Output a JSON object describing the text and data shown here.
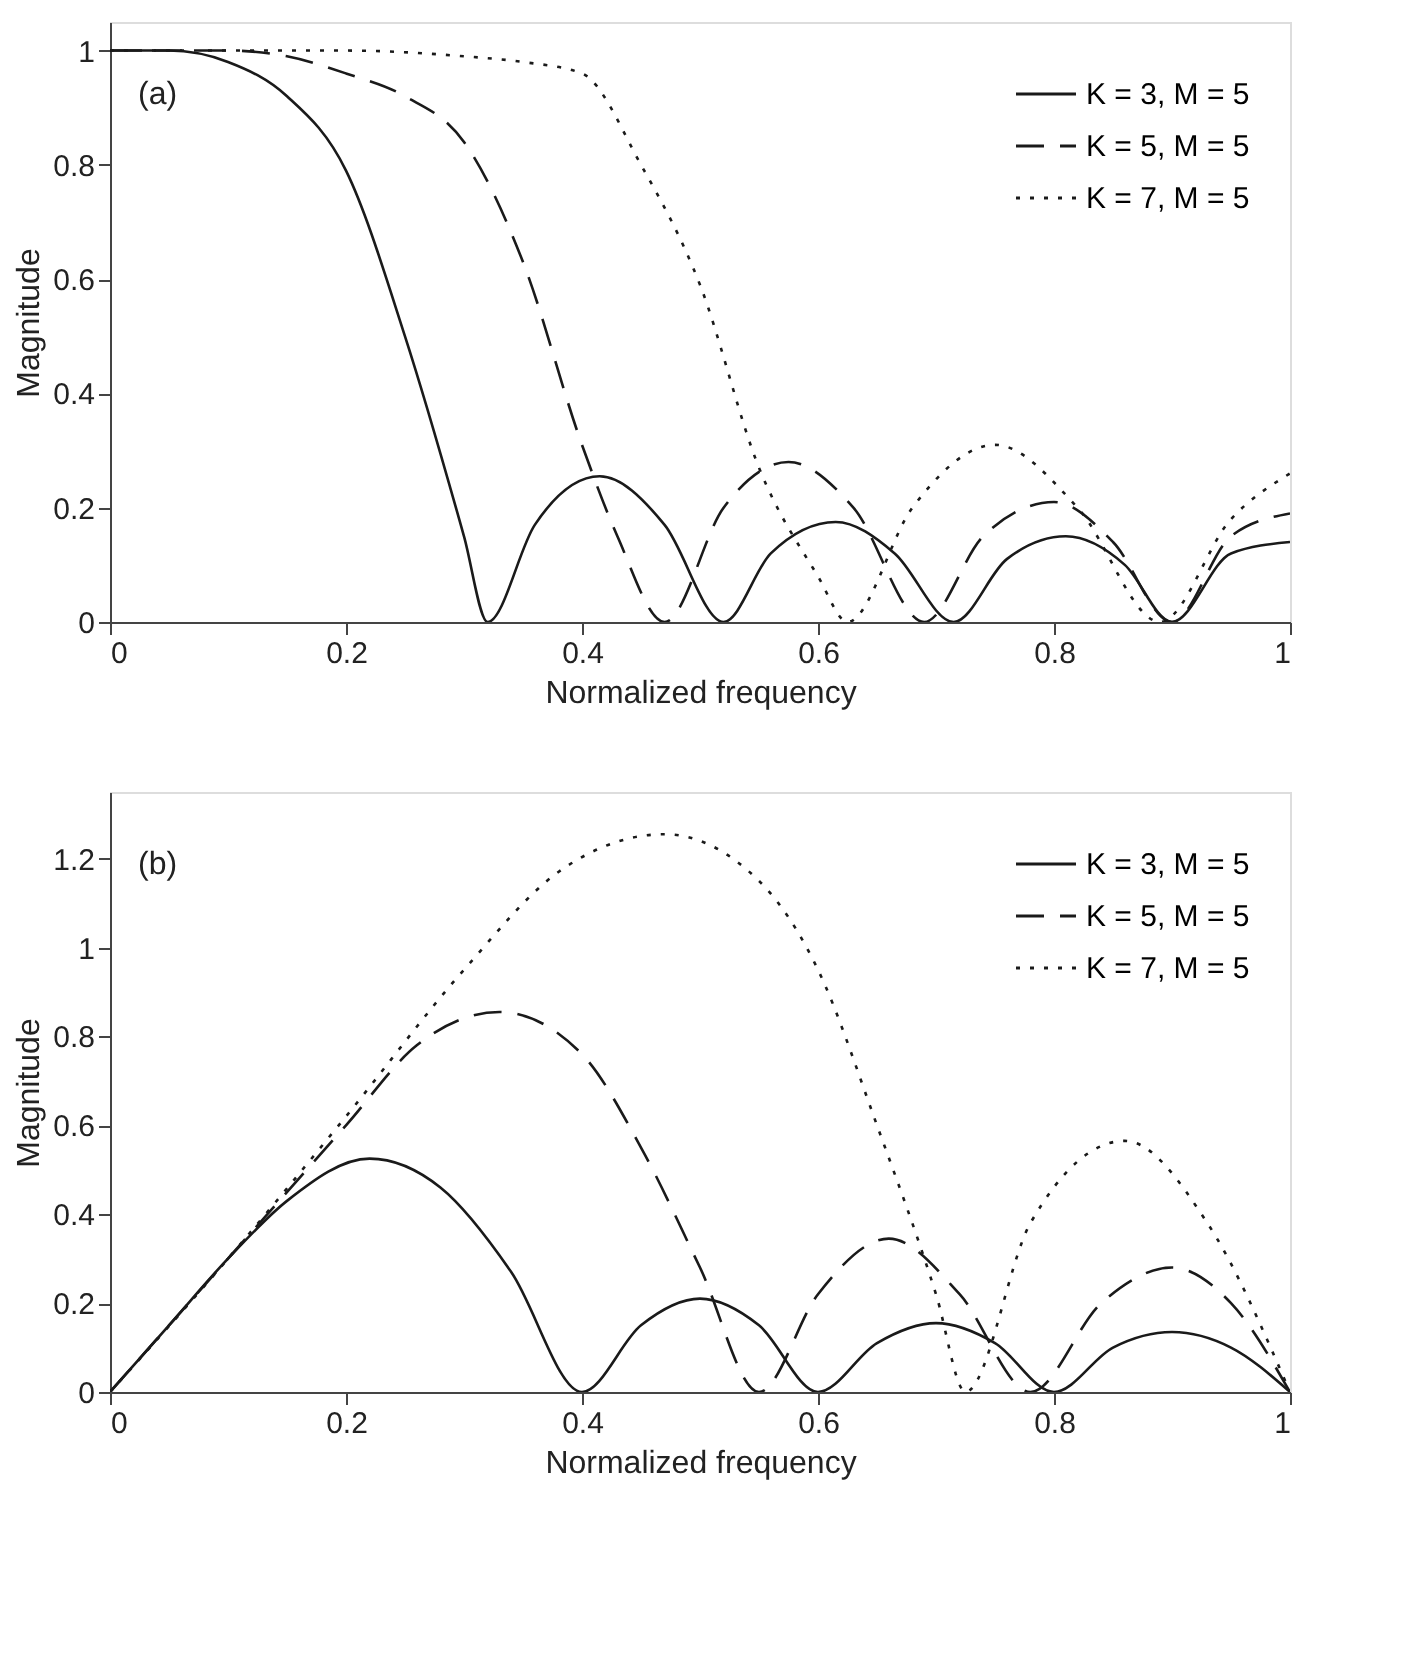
{
  "chart_data": [
    {
      "type": "line",
      "xlabel": "Normalized frequency",
      "ylabel": "Magnitude",
      "annotations": [
        "(a)"
      ],
      "legend": "top right",
      "grid": false,
      "xlim": [
        0,
        1
      ],
      "ylim": [
        0,
        1.05
      ],
      "xticks": [
        0,
        0.2,
        0.4,
        0.6,
        0.8,
        1
      ],
      "yticks": [
        0,
        0.2,
        0.4,
        0.6,
        0.8,
        1
      ],
      "series": [
        {
          "name": "K = 3, M = 5",
          "color": "#1a1a1a",
          "line_style": "solid",
          "x": [
            0,
            0.05,
            0.1,
            0.15,
            0.2,
            0.25,
            0.3,
            0.32,
            0.36,
            0.415,
            0.47,
            0.52,
            0.56,
            0.615,
            0.665,
            0.715,
            0.76,
            0.81,
            0.86,
            0.9,
            0.95,
            1
          ],
          "values": [
            1,
            1,
            0.98,
            0.92,
            0.79,
            0.5,
            0.15,
            0,
            0.17,
            0.255,
            0.17,
            0,
            0.12,
            0.175,
            0.12,
            0,
            0.11,
            0.15,
            0.1,
            0,
            0.12,
            0.14
          ]
        },
        {
          "name": "K = 5, M = 5",
          "color": "#1a1a1a",
          "line_style": "dashed",
          "x": [
            0,
            0.1,
            0.15,
            0.2,
            0.25,
            0.3,
            0.35,
            0.4,
            0.43,
            0.47,
            0.52,
            0.575,
            0.63,
            0.69,
            0.74,
            0.8,
            0.85,
            0.9,
            0.95,
            1
          ],
          "values": [
            1,
            1,
            0.99,
            0.96,
            0.92,
            0.84,
            0.63,
            0.31,
            0.15,
            0,
            0.2,
            0.28,
            0.2,
            0,
            0.15,
            0.21,
            0.14,
            0,
            0.15,
            0.19
          ]
        },
        {
          "name": "K = 7, M = 5",
          "color": "#1a1a1a",
          "line_style": "dotted",
          "x": [
            0,
            0.2,
            0.3,
            0.35,
            0.4,
            0.45,
            0.5,
            0.55,
            0.6,
            0.625,
            0.68,
            0.75,
            0.82,
            0.89,
            0.95,
            1
          ],
          "values": [
            1,
            1,
            0.99,
            0.98,
            0.96,
            0.8,
            0.59,
            0.27,
            0.08,
            0,
            0.2,
            0.31,
            0.2,
            0,
            0.18,
            0.26
          ]
        }
      ]
    },
    {
      "type": "line",
      "xlabel": "Normalized frequency",
      "ylabel": "Magnitude",
      "annotations": [
        "(b)"
      ],
      "legend": "top right",
      "grid": false,
      "xlim": [
        0,
        1
      ],
      "ylim": [
        0,
        1.35
      ],
      "xticks": [
        0,
        0.2,
        0.4,
        0.6,
        0.8,
        1
      ],
      "yticks": [
        0,
        0.2,
        0.4,
        0.6,
        0.8,
        1,
        1.2
      ],
      "series": [
        {
          "name": "K = 3, M = 5",
          "color": "#1a1a1a",
          "line_style": "solid",
          "x": [
            0,
            0.05,
            0.1,
            0.15,
            0.22,
            0.28,
            0.34,
            0.4,
            0.45,
            0.5,
            0.55,
            0.6,
            0.65,
            0.7,
            0.75,
            0.8,
            0.85,
            0.9,
            0.95,
            1
          ],
          "values": [
            0,
            0.15,
            0.3,
            0.43,
            0.525,
            0.46,
            0.27,
            0,
            0.15,
            0.21,
            0.15,
            0,
            0.11,
            0.155,
            0.11,
            0,
            0.1,
            0.135,
            0.1,
            0
          ]
        },
        {
          "name": "K = 5, M = 5",
          "color": "#1a1a1a",
          "line_style": "dashed",
          "x": [
            0,
            0.1,
            0.2,
            0.26,
            0.33,
            0.4,
            0.45,
            0.5,
            0.55,
            0.6,
            0.66,
            0.72,
            0.78,
            0.84,
            0.9,
            0.95,
            1
          ],
          "values": [
            0,
            0.3,
            0.6,
            0.78,
            0.855,
            0.76,
            0.55,
            0.28,
            0,
            0.22,
            0.345,
            0.22,
            0,
            0.2,
            0.28,
            0.2,
            0
          ]
        },
        {
          "name": "K = 7, M = 5",
          "color": "#1a1a1a",
          "line_style": "dotted",
          "x": [
            0,
            0.1,
            0.2,
            0.3,
            0.38,
            0.47,
            0.55,
            0.6,
            0.65,
            0.7,
            0.725,
            0.78,
            0.86,
            0.93,
            1
          ],
          "values": [
            0,
            0.3,
            0.62,
            0.95,
            1.17,
            1.255,
            1.15,
            0.95,
            0.6,
            0.22,
            0,
            0.38,
            0.565,
            0.38,
            0
          ]
        }
      ]
    }
  ]
}
